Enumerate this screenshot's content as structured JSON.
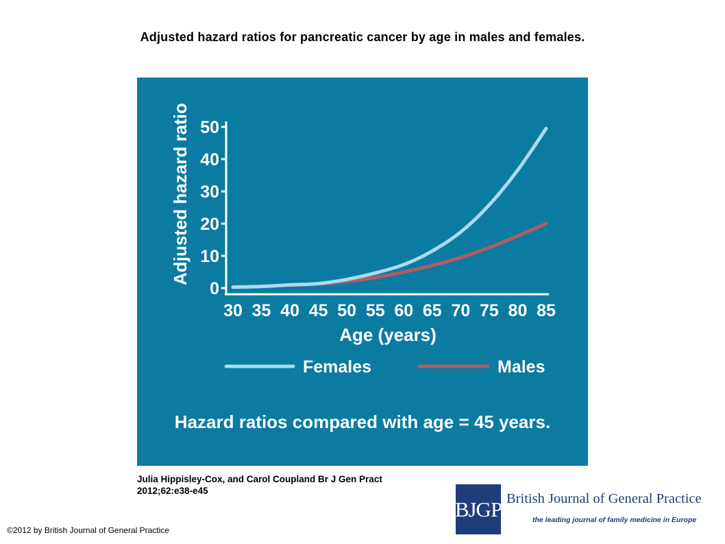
{
  "header": {
    "title": "Adjusted hazard ratios for pancreatic cancer by age in males and females."
  },
  "colors": {
    "panel_background": "#0b7ba2",
    "females_line": "#a9dcef",
    "males_line": "#b35c60",
    "axis_text": "#ffffff",
    "logo_navy": "#1f3d7a"
  },
  "chart_data": {
    "type": "line",
    "xlabel": "Age (years)",
    "ylabel": "Adjusted hazard ratio",
    "xlim": [
      30,
      85
    ],
    "ylim": [
      0,
      50
    ],
    "x_ticks": [
      "30",
      "35",
      "40",
      "45",
      "50",
      "55",
      "60",
      "65",
      "70",
      "75",
      "80",
      "85"
    ],
    "y_ticks": [
      "0",
      "10",
      "20",
      "30",
      "40",
      "50"
    ],
    "grid": false,
    "legend_position": "bottom",
    "x": [
      30,
      35,
      40,
      45,
      50,
      55,
      60,
      65,
      70,
      75,
      80,
      85
    ],
    "series": [
      {
        "name": "Females",
        "color": "#a9dcef",
        "values": [
          0.3,
          0.5,
          1.0,
          1.4,
          2.7,
          4.7,
          7.3,
          11.5,
          17.4,
          25.8,
          36.6,
          49.5
        ]
      },
      {
        "name": "Males",
        "color": "#b35c60",
        "values": [
          0.4,
          0.6,
          0.9,
          1.3,
          2.1,
          3.3,
          5.0,
          7.0,
          9.5,
          12.6,
          16.2,
          20.0
        ]
      }
    ],
    "annotation": "Hazard ratios compared with age = 45 years."
  },
  "citation": {
    "authors": "Julia Hippisley-Cox, and Carol Coupland Br J Gen Pract",
    "reference": "2012;62:e38-e45"
  },
  "footer": {
    "copyright": "©2012 by British Journal of General Practice"
  },
  "journal": {
    "logo_text": "BJGP",
    "name": "British Journal of General Practice",
    "tagline": "the leading journal of family medicine in Europe"
  }
}
